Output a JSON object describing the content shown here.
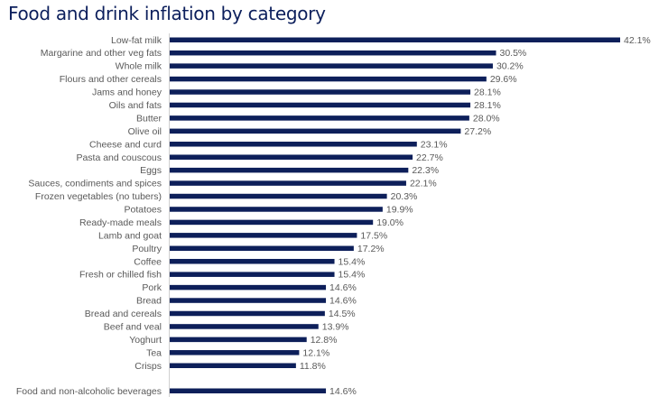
{
  "chart_data": {
    "type": "bar",
    "orientation": "horizontal",
    "title": "Food and drink inflation by category",
    "xlabel": "",
    "ylabel": "",
    "xlim": [
      0,
      42.1
    ],
    "grid": false,
    "bar_color": "#0d1f5a",
    "categories": [
      "Low-fat milk",
      "Margarine and other veg fats",
      "Whole milk",
      "Flours and other cereals",
      "Jams and honey",
      "Oils and fats",
      "Butter",
      "Olive oil",
      "Cheese and curd",
      "Pasta and couscous",
      "Eggs",
      "Sauces, condiments and spices",
      "Frozen vegetables (no tubers)",
      "Potatoes",
      "Ready-made meals",
      "Lamb and goat",
      "Poultry",
      "Coffee",
      "Fresh or chilled fish",
      "Pork",
      "Bread",
      "Bread and cereals",
      "Beef and veal",
      "Yoghurt",
      "Tea",
      "Crisps",
      "Food and non-alcoholic beverages"
    ],
    "values": [
      42.1,
      30.5,
      30.2,
      29.6,
      28.1,
      28.1,
      28.0,
      27.2,
      23.1,
      22.7,
      22.3,
      22.1,
      20.3,
      19.9,
      19.0,
      17.5,
      17.2,
      15.4,
      15.4,
      14.6,
      14.6,
      14.5,
      13.9,
      12.8,
      12.1,
      11.8,
      14.6
    ],
    "value_labels": [
      "42.1%",
      "30.5%",
      "30.2%",
      "29.6%",
      "28.1%",
      "28.1%",
      "28.0%",
      "27.2%",
      "23.1%",
      "22.7%",
      "22.3%",
      "22.1%",
      "20.3%",
      "19.9%",
      "19.0%",
      "17.5%",
      "17.2%",
      "15.4%",
      "15.4%",
      "14.6%",
      "14.6%",
      "14.5%",
      "13.9%",
      "12.8%",
      "12.1%",
      "11.8%",
      "14.6%"
    ]
  }
}
